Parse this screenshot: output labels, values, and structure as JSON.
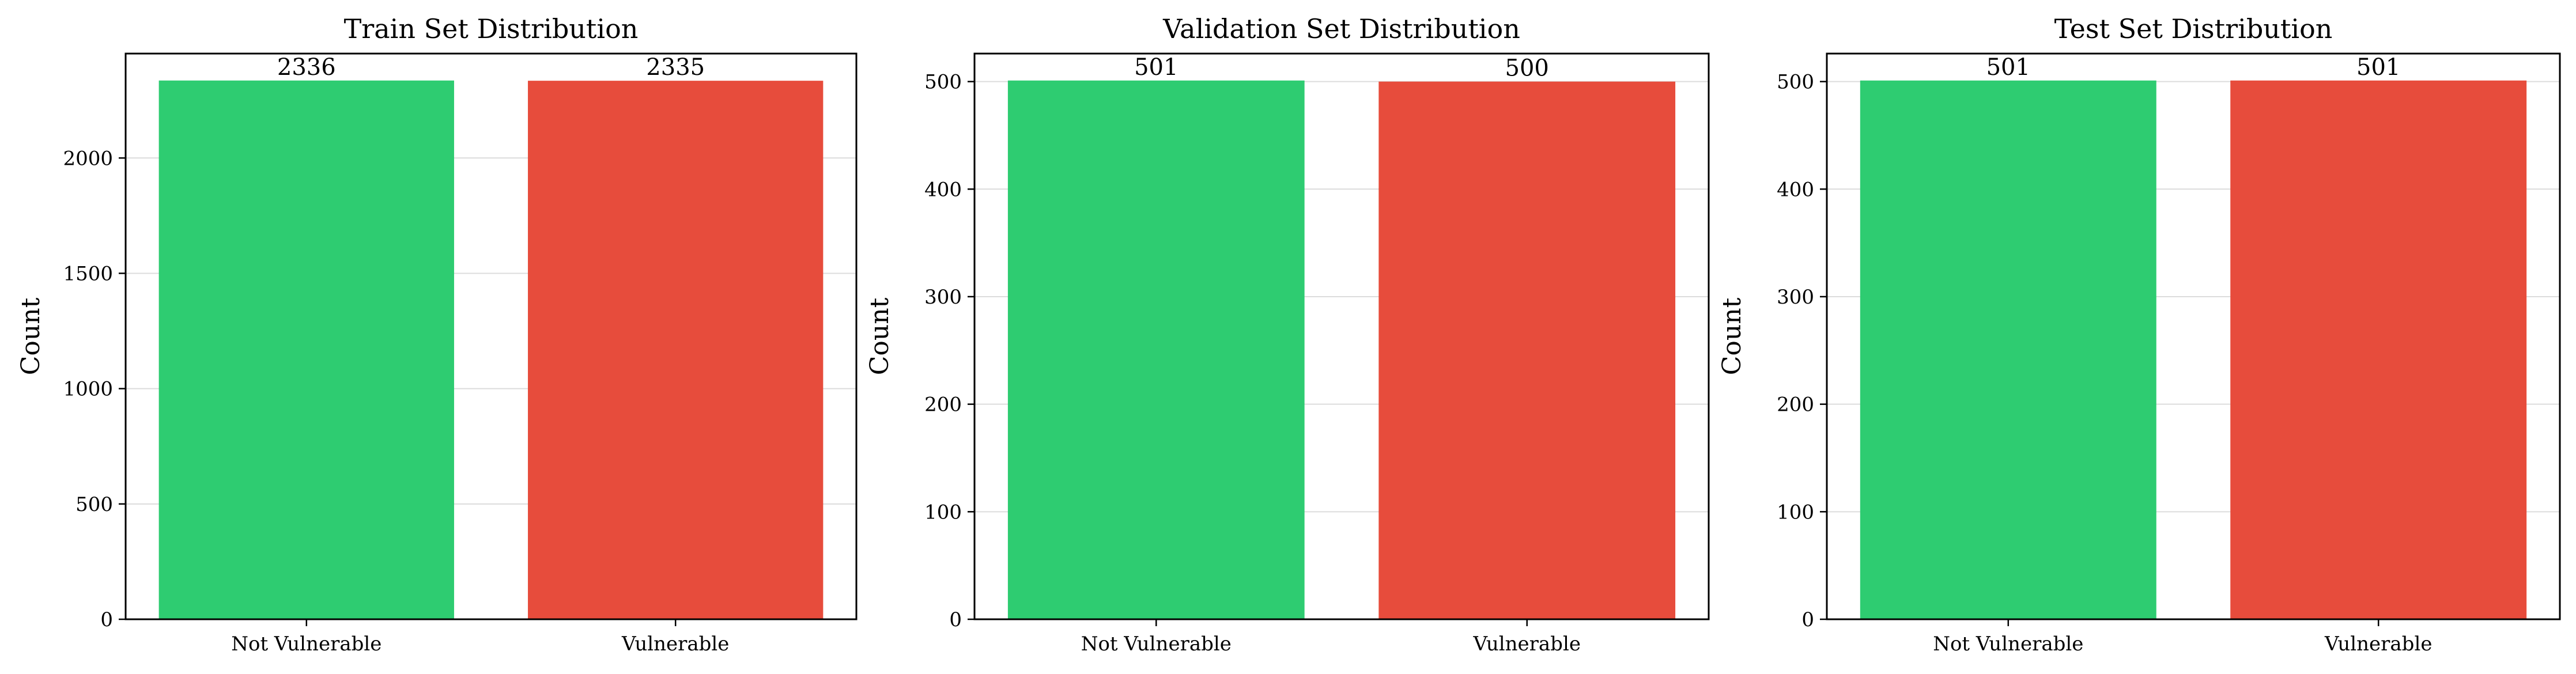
{
  "chart_data": [
    {
      "type": "bar",
      "title": "Train Set Distribution",
      "ylabel": "Count",
      "categories": [
        "Not Vulnerable",
        "Vulnerable"
      ],
      "values": [
        2336,
        2335
      ],
      "ylim": [
        0,
        2452.8
      ],
      "yticks": [
        0,
        500,
        1000,
        1500,
        2000
      ],
      "grid": true,
      "colors": [
        "#2ecc71",
        "#e74c3c"
      ]
    },
    {
      "type": "bar",
      "title": "Validation Set Distribution",
      "ylabel": "Count",
      "categories": [
        "Not Vulnerable",
        "Vulnerable"
      ],
      "values": [
        501,
        500
      ],
      "ylim": [
        0,
        526.05
      ],
      "yticks": [
        0,
        100,
        200,
        300,
        400,
        500
      ],
      "grid": true,
      "colors": [
        "#2ecc71",
        "#e74c3c"
      ]
    },
    {
      "type": "bar",
      "title": "Test Set Distribution",
      "ylabel": "Count",
      "categories": [
        "Not Vulnerable",
        "Vulnerable"
      ],
      "values": [
        501,
        501
      ],
      "ylim": [
        0,
        526.05
      ],
      "yticks": [
        0,
        100,
        200,
        300,
        400,
        500
      ],
      "grid": true,
      "colors": [
        "#2ecc71",
        "#e74c3c"
      ]
    }
  ]
}
